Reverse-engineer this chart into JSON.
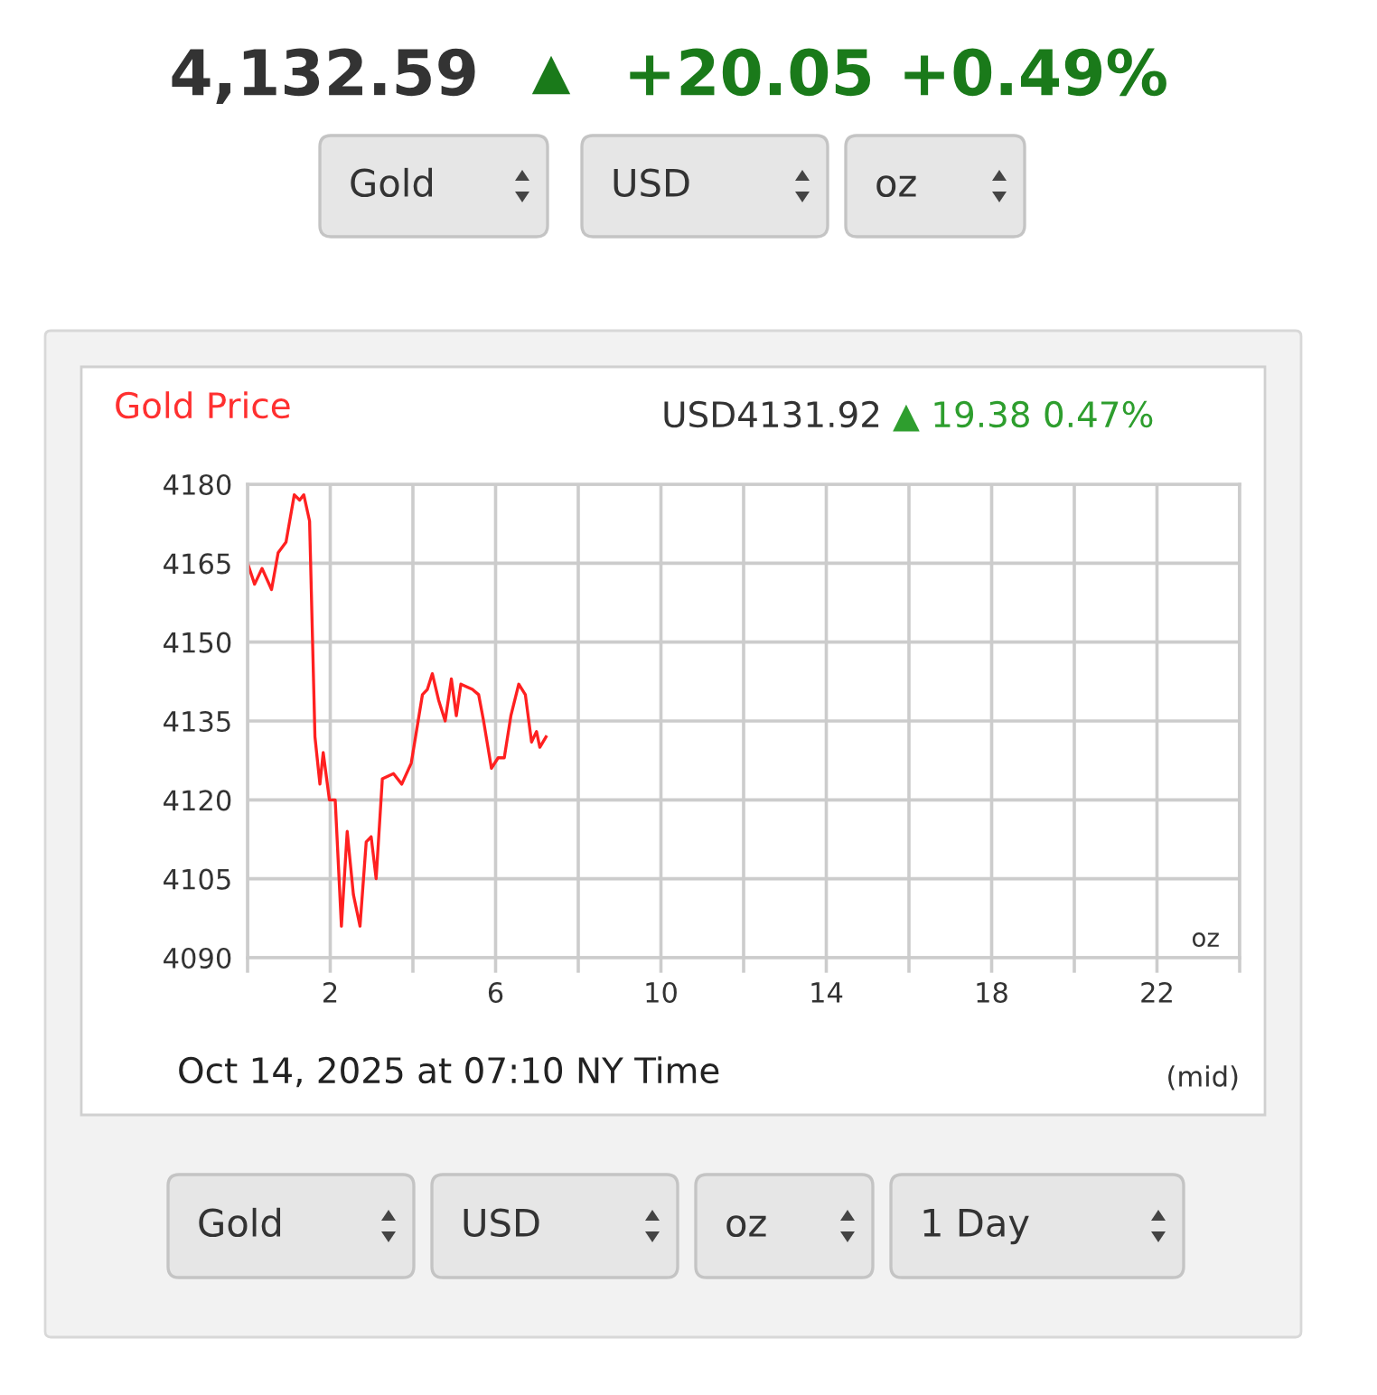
{
  "chart_data": {
    "type": "line",
    "title": "Gold Price",
    "subtitle": "USD4131.92",
    "annotations": [
      "4,132.59",
      "▲",
      "+20.05",
      "+0.49%",
      "▲ 19.38 0.47%",
      "oz",
      "Oct 14, 2025 at 07:10 NY Time",
      "(mid)",
      "Gold",
      "USD",
      "oz",
      "Gold",
      "USD",
      "oz",
      "1 Day"
    ],
    "series": [
      {
        "color": "#ff2020",
        "x": [
          0,
          0.17,
          0.35,
          0.58,
          0.74,
          0.93,
          1.13,
          1.26,
          1.36,
          1.5,
          1.63,
          1.75,
          1.83,
          1.98,
          2.12,
          2.27,
          2.41,
          2.56,
          2.72,
          2.87,
          2.99,
          3.11,
          3.26,
          3.53,
          3.73,
          3.96,
          4.23,
          4.35,
          4.47,
          4.62,
          4.78,
          4.93,
          5.05,
          5.16,
          5.44,
          5.59,
          5.71,
          5.9,
          6.06,
          6.21,
          6.37,
          6.56,
          6.72,
          6.87,
          6.99,
          7.07,
          7.22
        ],
        "values": [
          4165,
          4161,
          4164,
          4160,
          4167,
          4169,
          4178,
          4177,
          4178,
          4173,
          4132,
          4123,
          4129,
          4120,
          4120,
          4096,
          4114,
          4102,
          4096,
          4112,
          4113,
          4105,
          4124,
          4125,
          4123,
          4127,
          4140,
          4141,
          4144,
          4139,
          4135,
          4143,
          4136,
          4142,
          4141,
          4140,
          4135,
          4126,
          4128,
          4128,
          4136,
          4142,
          4140,
          4131,
          4133,
          4130,
          4132
        ]
      }
    ],
    "xlim": [
      0,
      24
    ],
    "xticks": [
      {
        "value": 0,
        "label": null
      },
      2,
      {
        "value": 4,
        "label": null
      },
      6,
      {
        "value": 8,
        "label": null
      },
      10,
      {
        "value": 12,
        "label": null
      },
      14,
      {
        "value": 16,
        "label": null
      },
      18,
      {
        "value": 20,
        "label": null
      },
      22,
      {
        "value": 24,
        "label": null
      }
    ],
    "ylim": [
      4090,
      4180
    ],
    "yticks": [
      4090,
      4105,
      4120,
      4135,
      4150,
      4165,
      4180
    ],
    "grid": true,
    "marker": "none",
    "line_style": "solid"
  }
}
